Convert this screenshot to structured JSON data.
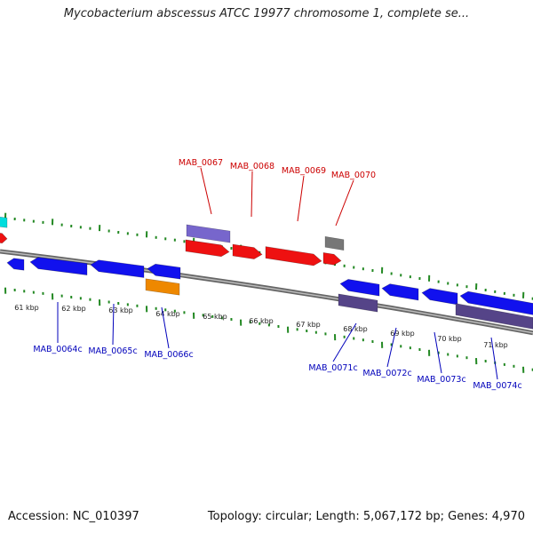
{
  "title": "Mycobacterium abscessus ATCC 19977 chromosome 1, complete se...",
  "footer": {
    "accession": "Accession: NC_010397",
    "summary": "Topology: circular; Length: 5,067,172 bp; Genes: 4,970"
  },
  "ruler": {
    "unit": "kbp",
    "labels": [
      "61 kbp",
      "62 kbp",
      "63 kbp",
      "64 kbp",
      "65 kbp",
      "66 kbp",
      "67 kbp",
      "68 kbp",
      "69 kbp",
      "70 kbp",
      "71 kbp"
    ]
  },
  "colors": {
    "forward_cds": "#ee1111",
    "reverse_cds": "#1111ee",
    "forward_label": "#cc0000",
    "reverse_label": "#0000bb",
    "feature_purple": "#7766cc",
    "feature_darkpurple": "#554488",
    "feature_gray": "#777777",
    "feature_orange": "#ee8800",
    "feature_cyan": "#00dddd",
    "backbone": "#888888",
    "tick_green": "#228822"
  },
  "gene_labels": {
    "forward": [
      "MAB_0067",
      "MAB_0068",
      "MAB_0069",
      "MAB_0070"
    ],
    "reverse": [
      "MAB_0064c",
      "MAB_0065c",
      "MAB_0066c",
      "MAB_0071c",
      "MAB_0072c",
      "MAB_0073c",
      "MAB_0074c"
    ]
  }
}
